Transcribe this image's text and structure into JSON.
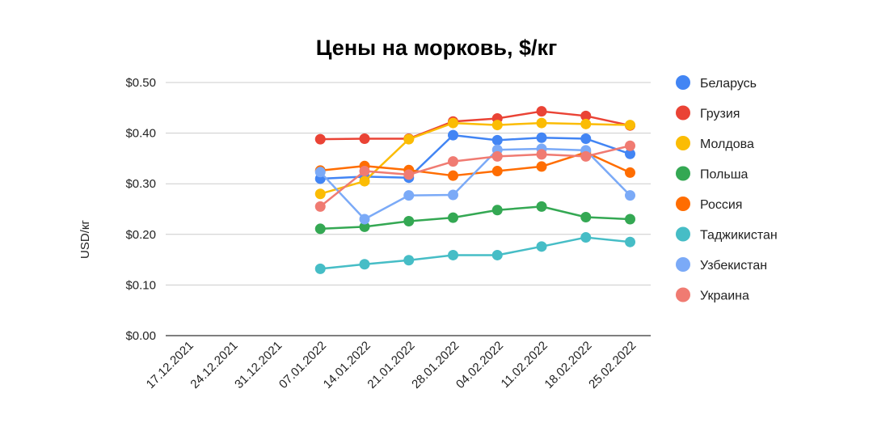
{
  "chart_data": {
    "type": "line",
    "title": "Цены на морковь, $/кг",
    "xlabel": "",
    "ylabel": "USD/кг",
    "ylim": [
      0,
      0.5
    ],
    "yticks": [
      0,
      0.1,
      0.2,
      0.3,
      0.4,
      0.5
    ],
    "ytick_labels": [
      "$0.00",
      "$0.10",
      "$0.20",
      "$0.30",
      "$0.40",
      "$0.50"
    ],
    "grid": true,
    "legend_position": "right",
    "x": [
      "17.12.2021",
      "24.12.2021",
      "31.12.2021",
      "07.01.2022",
      "14.01.2022",
      "21.01.2022",
      "28.01.2022",
      "04.02.2022",
      "11.02.2022",
      "18.02.2022",
      "25.02.2022"
    ],
    "series": [
      {
        "name": "Беларусь",
        "color": "#4285F4",
        "values": [
          null,
          null,
          null,
          0.31,
          0.314,
          0.312,
          0.396,
          0.386,
          0.391,
          0.389,
          0.359
        ]
      },
      {
        "name": "Грузия",
        "color": "#EA4335",
        "values": [
          null,
          null,
          null,
          0.388,
          0.389,
          0.389,
          0.423,
          0.429,
          0.443,
          0.434,
          0.415
        ]
      },
      {
        "name": "Молдова",
        "color": "#FBBC04",
        "values": [
          null,
          null,
          null,
          0.28,
          0.305,
          0.388,
          0.42,
          0.416,
          0.42,
          0.418,
          0.416
        ]
      },
      {
        "name": "Польша",
        "color": "#34A853",
        "values": [
          null,
          null,
          null,
          0.211,
          0.215,
          0.226,
          0.233,
          0.248,
          0.255,
          0.234,
          0.23
        ]
      },
      {
        "name": "Россия",
        "color": "#FF6D01",
        "values": [
          null,
          null,
          null,
          0.326,
          0.335,
          0.327,
          0.316,
          0.325,
          0.334,
          0.362,
          0.322
        ]
      },
      {
        "name": "Таджикистан",
        "color": "#46BDC6",
        "values": [
          null,
          null,
          null,
          0.132,
          0.141,
          0.149,
          0.159,
          0.159,
          0.176,
          0.194,
          0.185
        ]
      },
      {
        "name": "Узбекистан",
        "color": "#7BAAF7",
        "values": [
          null,
          null,
          null,
          0.323,
          0.23,
          0.277,
          0.278,
          0.367,
          0.369,
          0.366,
          0.277
        ]
      },
      {
        "name": "Украина",
        "color": "#F07B72",
        "values": [
          null,
          null,
          null,
          0.255,
          0.325,
          0.318,
          0.344,
          0.354,
          0.358,
          0.354,
          0.375
        ]
      }
    ]
  }
}
